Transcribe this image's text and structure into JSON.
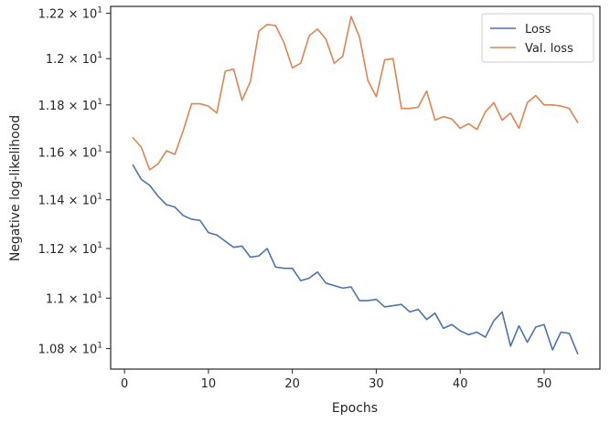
{
  "chart_data": {
    "type": "line",
    "title": "",
    "xlabel": "Epochs",
    "ylabel": "Negative log-likelihood",
    "xlim": [
      -1.65,
      56.65
    ],
    "ylim": [
      10.72,
      12.23
    ],
    "yscale": "log",
    "grid": false,
    "legend_position": "top-right",
    "x_ticks": [
      0,
      10,
      20,
      30,
      40,
      50
    ],
    "x_tick_labels": [
      "0",
      "10",
      "20",
      "30",
      "40",
      "50"
    ],
    "y_ticks": [
      10.8,
      11.0,
      11.2,
      11.4,
      11.6,
      11.8,
      12.0,
      12.2
    ],
    "y_tick_mantissas": [
      "1.08",
      "1.1",
      "1.12",
      "1.14",
      "1.16",
      "1.18",
      "1.2",
      "1.22"
    ],
    "y_tick_base": "10",
    "y_tick_exponent": "1",
    "y_tick_multiplier": "×",
    "x": [
      1,
      2,
      3,
      4,
      5,
      6,
      7,
      8,
      9,
      10,
      11,
      12,
      13,
      14,
      15,
      16,
      17,
      18,
      19,
      20,
      21,
      22,
      23,
      24,
      25,
      26,
      27,
      28,
      29,
      30,
      31,
      32,
      33,
      34,
      35,
      36,
      37,
      38,
      39,
      40,
      41,
      42,
      43,
      44,
      45,
      46,
      47,
      48,
      49,
      50,
      51,
      52,
      53,
      54
    ],
    "series": [
      {
        "name": "Loss",
        "color": "#4c72b0",
        "values": [
          11.545,
          11.485,
          11.46,
          11.415,
          11.38,
          11.37,
          11.335,
          11.32,
          11.315,
          11.265,
          11.255,
          11.23,
          11.205,
          11.21,
          11.165,
          11.17,
          11.2,
          11.125,
          11.12,
          11.12,
          11.07,
          11.08,
          11.105,
          11.06,
          11.05,
          11.04,
          11.045,
          10.99,
          10.99,
          10.995,
          10.965,
          10.97,
          10.975,
          10.945,
          10.955,
          10.915,
          10.94,
          10.88,
          10.895,
          10.87,
          10.855,
          10.865,
          10.845,
          10.91,
          10.945,
          10.81,
          10.89,
          10.825,
          10.885,
          10.895,
          10.795,
          10.865,
          10.86,
          10.78
        ]
      },
      {
        "name": "Val. loss",
        "color": "#dd8452",
        "values": [
          11.66,
          11.62,
          11.525,
          11.55,
          11.605,
          11.59,
          11.69,
          11.805,
          11.805,
          11.795,
          11.765,
          11.945,
          11.955,
          11.82,
          11.9,
          12.12,
          12.15,
          12.145,
          12.07,
          11.96,
          11.98,
          12.1,
          12.13,
          12.085,
          11.98,
          12.01,
          12.185,
          12.095,
          11.905,
          11.835,
          11.995,
          12.0,
          11.785,
          11.785,
          11.79,
          11.86,
          11.735,
          11.75,
          11.74,
          11.7,
          11.72,
          11.695,
          11.77,
          11.81,
          11.735,
          11.765,
          11.7,
          11.81,
          11.84,
          11.8,
          11.8,
          11.795,
          11.785,
          11.725
        ]
      }
    ]
  }
}
